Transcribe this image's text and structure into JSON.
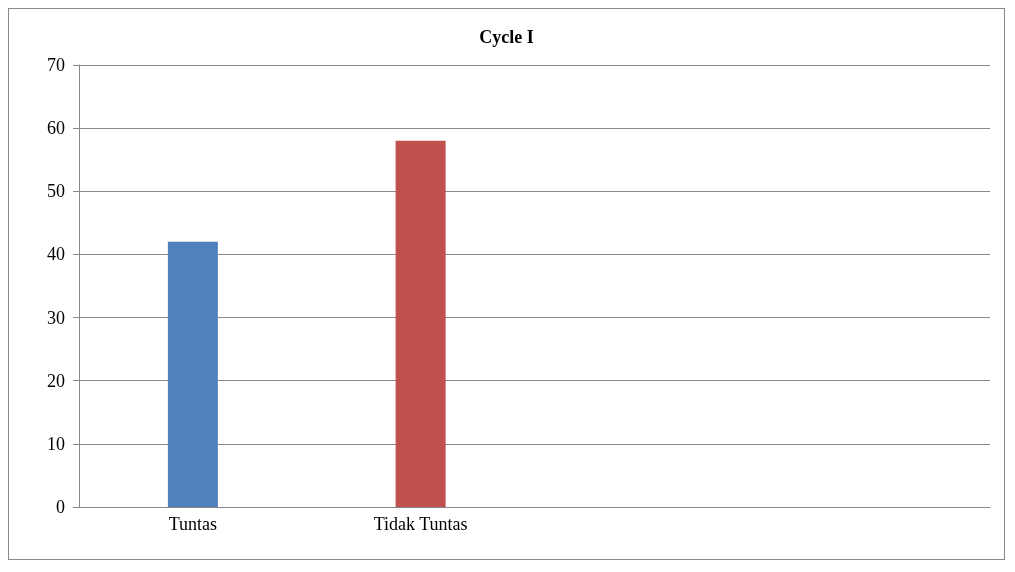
{
  "chart_data": {
    "type": "bar",
    "title": "Cycle I",
    "categories": [
      "Tuntas",
      "Tidak Tuntas",
      null,
      null
    ],
    "values": [
      42,
      58,
      null,
      null
    ],
    "colors": [
      "#4f81bd",
      "#c0504d",
      "#4f81bd",
      "#c0504d"
    ],
    "ylim": [
      0,
      70
    ],
    "yticks": [
      0,
      10,
      20,
      30,
      40,
      50,
      60,
      70
    ],
    "grid": "y"
  }
}
